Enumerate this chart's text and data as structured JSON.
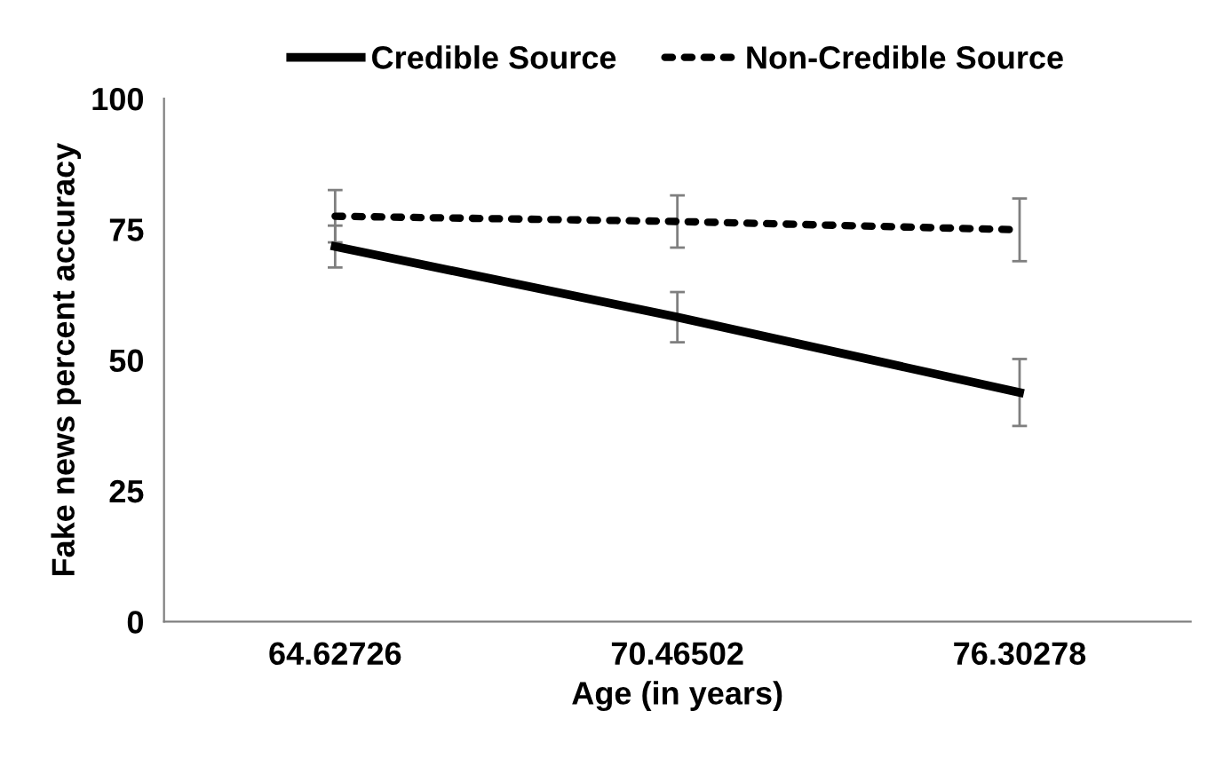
{
  "chart_data": {
    "type": "line",
    "xlabel": "Age (in years)",
    "ylabel": "Fake news percent accuracy",
    "categories": [
      "64.62726",
      "70.46502",
      "76.30278"
    ],
    "series": [
      {
        "name": "Credible Source",
        "color": "#000000",
        "line_style": "solid",
        "values": [
          71.7,
          58.2,
          43.8
        ],
        "errors": [
          4,
          4.8,
          6.4
        ]
      },
      {
        "name": "Non-Credible Source",
        "color": "#000000",
        "line_style": "dotted",
        "values": [
          77.5,
          76.5,
          74.9
        ],
        "errors": [
          5,
          5,
          6
        ]
      }
    ],
    "ylim": [
      0,
      100
    ],
    "yticks": [
      0,
      25,
      50,
      75,
      100
    ],
    "grid": false,
    "legend": "top",
    "marker": "none"
  }
}
